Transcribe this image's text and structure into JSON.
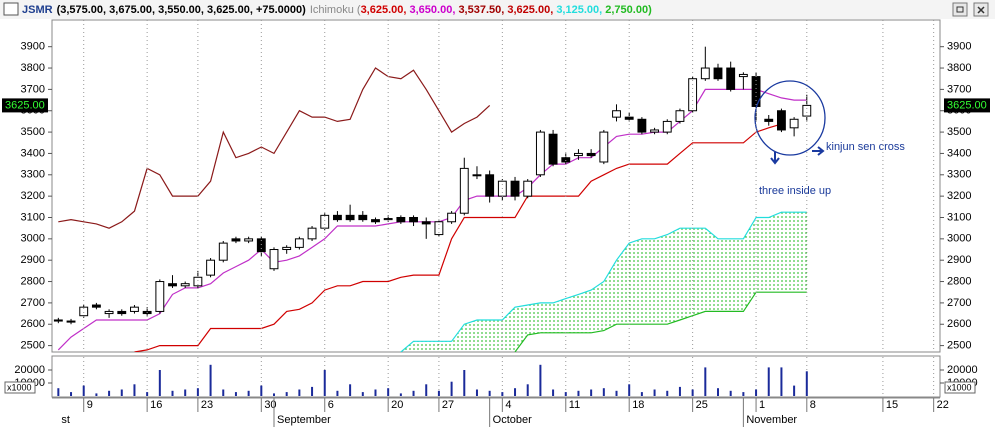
{
  "header": {
    "symbol": "JSMR",
    "quote": "(3,575.00, 3,675.00, 3,550.00, 3,625.00, +75.0000)",
    "indicator": "Ichimoku (",
    "indicator_values": [
      {
        "text": "3,625.00, ",
        "color": "#d00000"
      },
      {
        "text": "3,650.00, ",
        "color": "#cc00cc"
      },
      {
        "text": "3,537.50, ",
        "color": "#a00000"
      },
      {
        "text": "3,625.00, ",
        "color": "#c00000"
      },
      {
        "text": "3,125.00, ",
        "color": "#22dddd"
      },
      {
        "text": "2,750.00)",
        "color": "#22bb22"
      }
    ]
  },
  "chart_data": {
    "type": "candlestick",
    "categories": [
      null,
      null,
      "9",
      null,
      null,
      null,
      null,
      "16",
      null,
      null,
      null,
      "23",
      null,
      null,
      null,
      null,
      "30",
      null,
      null,
      null,
      null,
      "6",
      null,
      null,
      null,
      null,
      "20",
      null,
      null,
      null,
      "27",
      null,
      null,
      null,
      null,
      "4",
      null,
      null,
      null,
      null,
      "11",
      null,
      null,
      null,
      null,
      "18",
      null,
      null,
      null,
      null,
      "25",
      null,
      null,
      null,
      null,
      "1",
      null,
      null,
      null,
      "8",
      null,
      null,
      null,
      null,
      null,
      "15",
      null,
      null,
      null,
      "22"
    ],
    "months": [
      "st",
      null,
      null,
      null,
      null,
      null,
      null,
      null,
      null,
      null,
      null,
      null,
      null,
      null,
      null,
      null,
      null,
      "September",
      null,
      null,
      null,
      null,
      null,
      null,
      null,
      null,
      null,
      null,
      null,
      null,
      null,
      null,
      null,
      null,
      "October",
      null,
      null,
      null,
      null,
      null,
      null,
      null,
      null,
      null,
      null,
      null,
      null,
      null,
      null,
      null,
      null,
      null,
      null,
      null,
      "November",
      null,
      null,
      null,
      null,
      null,
      null,
      null,
      null,
      null,
      null,
      null,
      null,
      null,
      null,
      null
    ],
    "open": [
      2620,
      2615,
      2640,
      2690,
      2650,
      2660,
      2660,
      2660,
      2660,
      2790,
      2780,
      2780,
      2830,
      2900,
      3000,
      2990,
      3000,
      2860,
      2950,
      2960,
      3000,
      3050,
      3110,
      3110,
      3110,
      3090,
      3090,
      3100,
      3100,
      3080,
      3020,
      3080,
      3120,
      3300,
      3300,
      3200,
      3270,
      3200,
      3300,
      3490,
      3380,
      3390,
      3400,
      3360,
      3570,
      3570,
      3560,
      3500,
      3500,
      3550,
      3600,
      3750,
      3800,
      3800,
      3760,
      3760,
      3560,
      3600,
      3520,
      3575,
      null,
      null,
      null,
      null,
      null,
      null,
      null,
      null,
      null,
      null
    ],
    "high": [
      2630,
      2625,
      2690,
      2700,
      2670,
      2670,
      2690,
      2680,
      2810,
      2830,
      2800,
      2850,
      2910,
      2990,
      3010,
      3010,
      3010,
      2960,
      2970,
      3010,
      3060,
      3120,
      3130,
      3160,
      3130,
      3100,
      3110,
      3110,
      3110,
      3100,
      3090,
      3130,
      3380,
      3340,
      3320,
      3280,
      3290,
      3280,
      3510,
      3510,
      3400,
      3420,
      3420,
      3510,
      3630,
      3590,
      3570,
      3520,
      3560,
      3610,
      3760,
      3900,
      3820,
      3830,
      3780,
      3780,
      3580,
      3610,
      3570,
      3675,
      null,
      null,
      null,
      null,
      null,
      null,
      null,
      null,
      null,
      null
    ],
    "low": [
      2605,
      2600,
      2630,
      2670,
      2630,
      2640,
      2650,
      2640,
      2650,
      2770,
      2770,
      2770,
      2820,
      2890,
      2980,
      2980,
      2920,
      2850,
      2930,
      2950,
      2990,
      3040,
      3080,
      3080,
      3080,
      3070,
      3080,
      3070,
      3060,
      3000,
      3010,
      3070,
      3110,
      3280,
      3170,
      3180,
      3180,
      3190,
      3290,
      3340,
      3350,
      3370,
      3380,
      3350,
      3550,
      3550,
      3490,
      3490,
      3490,
      3540,
      3590,
      3740,
      3740,
      3690,
      3700,
      3550,
      3530,
      3500,
      3480,
      3550,
      null,
      null,
      null,
      null,
      null,
      null,
      null,
      null,
      null,
      null
    ],
    "close": [
      2615,
      2610,
      2680,
      2680,
      2660,
      2650,
      2680,
      2650,
      2800,
      2780,
      2790,
      2820,
      2900,
      2980,
      2990,
      3000,
      2940,
      2950,
      2960,
      3000,
      3050,
      3110,
      3090,
      3090,
      3090,
      3080,
      3095,
      3080,
      3080,
      3070,
      3080,
      3120,
      3330,
      3300,
      3200,
      3270,
      3200,
      3270,
      3500,
      3350,
      3360,
      3400,
      3390,
      3500,
      3600,
      3560,
      3500,
      3510,
      3550,
      3600,
      3750,
      3800,
      3750,
      3700,
      3770,
      3620,
      3550,
      3510,
      3560,
      3625,
      null,
      null,
      null,
      null,
      null,
      null,
      null,
      null,
      null,
      null
    ],
    "last_price_label": "3625.00",
    "series": [
      {
        "color": "#8b1a1a",
        "values": [
          3080,
          3090,
          3080,
          3070,
          3050,
          3080,
          3130,
          3330,
          3300,
          3200,
          3200,
          3200,
          3270,
          3500,
          3380,
          3400,
          3430,
          3400,
          3500,
          3600,
          3570,
          3570,
          3550,
          3560,
          3700,
          3800,
          3760,
          3750,
          3790,
          3700,
          3600,
          3500,
          3540,
          3570,
          3625,
          null,
          null,
          null,
          null,
          null,
          null,
          null,
          null,
          null,
          null,
          null,
          null,
          null,
          null,
          null,
          null,
          null,
          null,
          null,
          null,
          null,
          null,
          null,
          null,
          null,
          null,
          null,
          null,
          null,
          null,
          null,
          null,
          null,
          null,
          null
        ]
      },
      {
        "color": "#c030c8",
        "values": [
          2480,
          2540,
          2580,
          2620,
          2620,
          2620,
          2620,
          2620,
          2650,
          2740,
          2770,
          2770,
          2790,
          2840,
          2870,
          2900,
          2950,
          2890,
          2900,
          2920,
          2960,
          3000,
          3060,
          3060,
          3060,
          3060,
          3070,
          3080,
          3080,
          3080,
          3080,
          3100,
          3180,
          3200,
          3200,
          3200,
          3200,
          3240,
          3300,
          3350,
          3350,
          3380,
          3380,
          3430,
          3480,
          3490,
          3490,
          3500,
          3500,
          3550,
          3600,
          3700,
          3700,
          3700,
          3700,
          3700,
          3680,
          3660,
          3650,
          3650,
          null,
          null,
          null,
          null,
          null,
          null,
          null,
          null,
          null,
          null
        ]
      },
      {
        "color": "#d00000",
        "values": [
          null,
          null,
          null,
          null,
          null,
          null,
          2470,
          2480,
          2500,
          2500,
          2500,
          2500,
          2580,
          2580,
          2580,
          2580,
          2580,
          2600,
          2660,
          2670,
          2700,
          2760,
          2780,
          2780,
          2800,
          2800,
          2800,
          2820,
          2830,
          2830,
          2830,
          3000,
          3100,
          3100,
          3100,
          3100,
          3100,
          3200,
          3200,
          3200,
          3200,
          3200,
          3270,
          3300,
          3330,
          3350,
          3350,
          3350,
          3350,
          3400,
          3450,
          3450,
          3450,
          3450,
          3450,
          3500,
          3520,
          3537.5,
          null,
          null,
          null,
          null,
          null,
          null,
          null,
          null,
          null,
          null,
          null,
          null
        ]
      },
      {
        "color": "#22dddd",
        "values": [
          null,
          null,
          null,
          null,
          null,
          null,
          null,
          null,
          null,
          null,
          null,
          null,
          null,
          null,
          null,
          null,
          null,
          null,
          null,
          null,
          null,
          null,
          null,
          null,
          null,
          null,
          null,
          2470,
          2520,
          2520,
          2520,
          2520,
          2600,
          2620,
          2620,
          2620,
          2680,
          2690,
          2700,
          2700,
          2720,
          2740,
          2760,
          2800,
          2900,
          2980,
          3000,
          3000,
          3020,
          3050,
          3050,
          3050,
          3000,
          3000,
          3000,
          3100,
          3100,
          3125,
          3125,
          3125,
          null,
          null,
          null,
          null,
          null,
          null,
          null,
          null,
          null,
          null
        ]
      },
      {
        "color": "#22bb22",
        "values": [
          null,
          null,
          null,
          null,
          null,
          null,
          null,
          null,
          null,
          null,
          null,
          null,
          null,
          null,
          null,
          null,
          null,
          null,
          null,
          null,
          null,
          null,
          null,
          null,
          null,
          null,
          null,
          null,
          null,
          null,
          null,
          null,
          null,
          null,
          null,
          null,
          2470,
          2550,
          2560,
          2560,
          2560,
          2560,
          2560,
          2570,
          2600,
          2600,
          2600,
          2600,
          2600,
          2620,
          2640,
          2660,
          2660,
          2660,
          2660,
          2750,
          2750,
          2750,
          2750,
          2750,
          null,
          null,
          null,
          null,
          null,
          null,
          null,
          null,
          null,
          null
        ]
      }
    ],
    "ylim": [
      2470,
      4025
    ],
    "yticks": [
      2500,
      2600,
      2700,
      2800,
      2900,
      3000,
      3100,
      3200,
      3300,
      3400,
      3500,
      3600,
      3700,
      3800,
      3900
    ],
    "volume": {
      "color": "#1a2a9a",
      "unit": "x1000",
      "ylim": [
        0,
        30000
      ],
      "yticks": [
        10000,
        20000
      ],
      "values": [
        6000,
        3000,
        8000,
        2000,
        4000,
        5000,
        9000,
        3000,
        20000,
        4000,
        5000,
        6000,
        24000,
        5000,
        3000,
        4000,
        8000,
        2000,
        3000,
        5000,
        7000,
        20000,
        4000,
        9000,
        3000,
        5000,
        6000,
        2000,
        4000,
        9000,
        4000,
        11000,
        20000,
        5000,
        4000,
        3000,
        6000,
        9000,
        24000,
        5000,
        3000,
        4000,
        5000,
        6000,
        4000,
        9000,
        3000,
        5000,
        4000,
        7000,
        5000,
        22000,
        6000,
        4000,
        3000,
        5000,
        22000,
        22000,
        8000,
        19000,
        null,
        null,
        null,
        null,
        null,
        null,
        null,
        null,
        null,
        null
      ]
    },
    "annotations": {
      "cross": "kinjun sen cross",
      "pattern": "three inside up"
    }
  }
}
